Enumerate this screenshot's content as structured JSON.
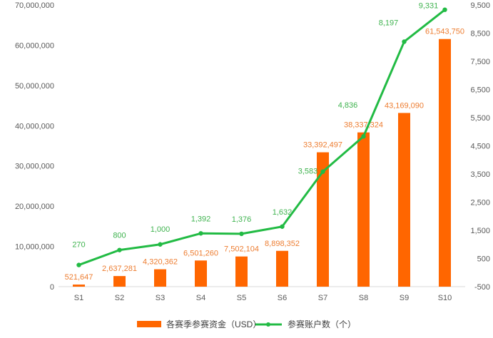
{
  "chart_data": {
    "type": "bar",
    "categories": [
      "S1",
      "S2",
      "S3",
      "S4",
      "S5",
      "S6",
      "S7",
      "S8",
      "S9",
      "S10"
    ],
    "series": [
      {
        "name": "各赛季参赛资金（USD）",
        "type": "bar",
        "axis": "left",
        "color": "#FF6600",
        "values": [
          521647,
          2637281,
          4320362,
          6501260,
          7502104,
          8898352,
          33392497,
          38337324,
          43169090,
          61543750
        ],
        "labels": [
          "521,647",
          "2,637,281",
          "4,320,362",
          "6,501,260",
          "7,502,104",
          "8,898,352",
          "33,392,497",
          "38,337,324",
          "43,169,090",
          "61,543,750"
        ]
      },
      {
        "name": "参赛账户数（个）",
        "type": "line",
        "axis": "right",
        "color": "#22BB44",
        "values": [
          270,
          800,
          1000,
          1392,
          1376,
          1632,
          3583,
          4836,
          8197,
          9331
        ],
        "labels": [
          "270",
          "800",
          "1,000",
          "1,392",
          "1,376",
          "1,632",
          "3,583",
          "4,836",
          "8,197",
          "9,331"
        ]
      }
    ],
    "y_left": {
      "range": [
        0,
        70000000
      ],
      "ticks": [
        0,
        10000000,
        20000000,
        30000000,
        40000000,
        50000000,
        60000000,
        70000000
      ],
      "tick_labels": [
        "0",
        "10,000,000",
        "20,000,000",
        "30,000,000",
        "40,000,000",
        "50,000,000",
        "60,000,000",
        "70,000,000"
      ]
    },
    "y_right": {
      "range": [
        -500,
        9500
      ],
      "ticks": [
        -500,
        500,
        1500,
        2500,
        3500,
        4500,
        5500,
        6500,
        7500,
        8500,
        9500
      ],
      "tick_labels": [
        "-500",
        "500",
        "1,500",
        "2,500",
        "3,500",
        "4,500",
        "5,500",
        "6,500",
        "7,500",
        "8,500",
        "9,500"
      ]
    },
    "grid": false,
    "legend_position": "bottom"
  }
}
